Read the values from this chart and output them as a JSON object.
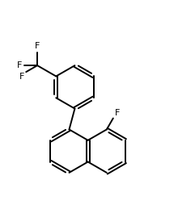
{
  "background": "#ffffff",
  "bond_color": "#000000",
  "text_color": "#000000",
  "figsize": [
    2.2,
    2.54
  ],
  "dpi": 100,
  "lw": 1.4,
  "font_size": 8,
  "xlim": [
    2.0,
    8.5
  ],
  "ylim": [
    1.5,
    11.0
  ]
}
